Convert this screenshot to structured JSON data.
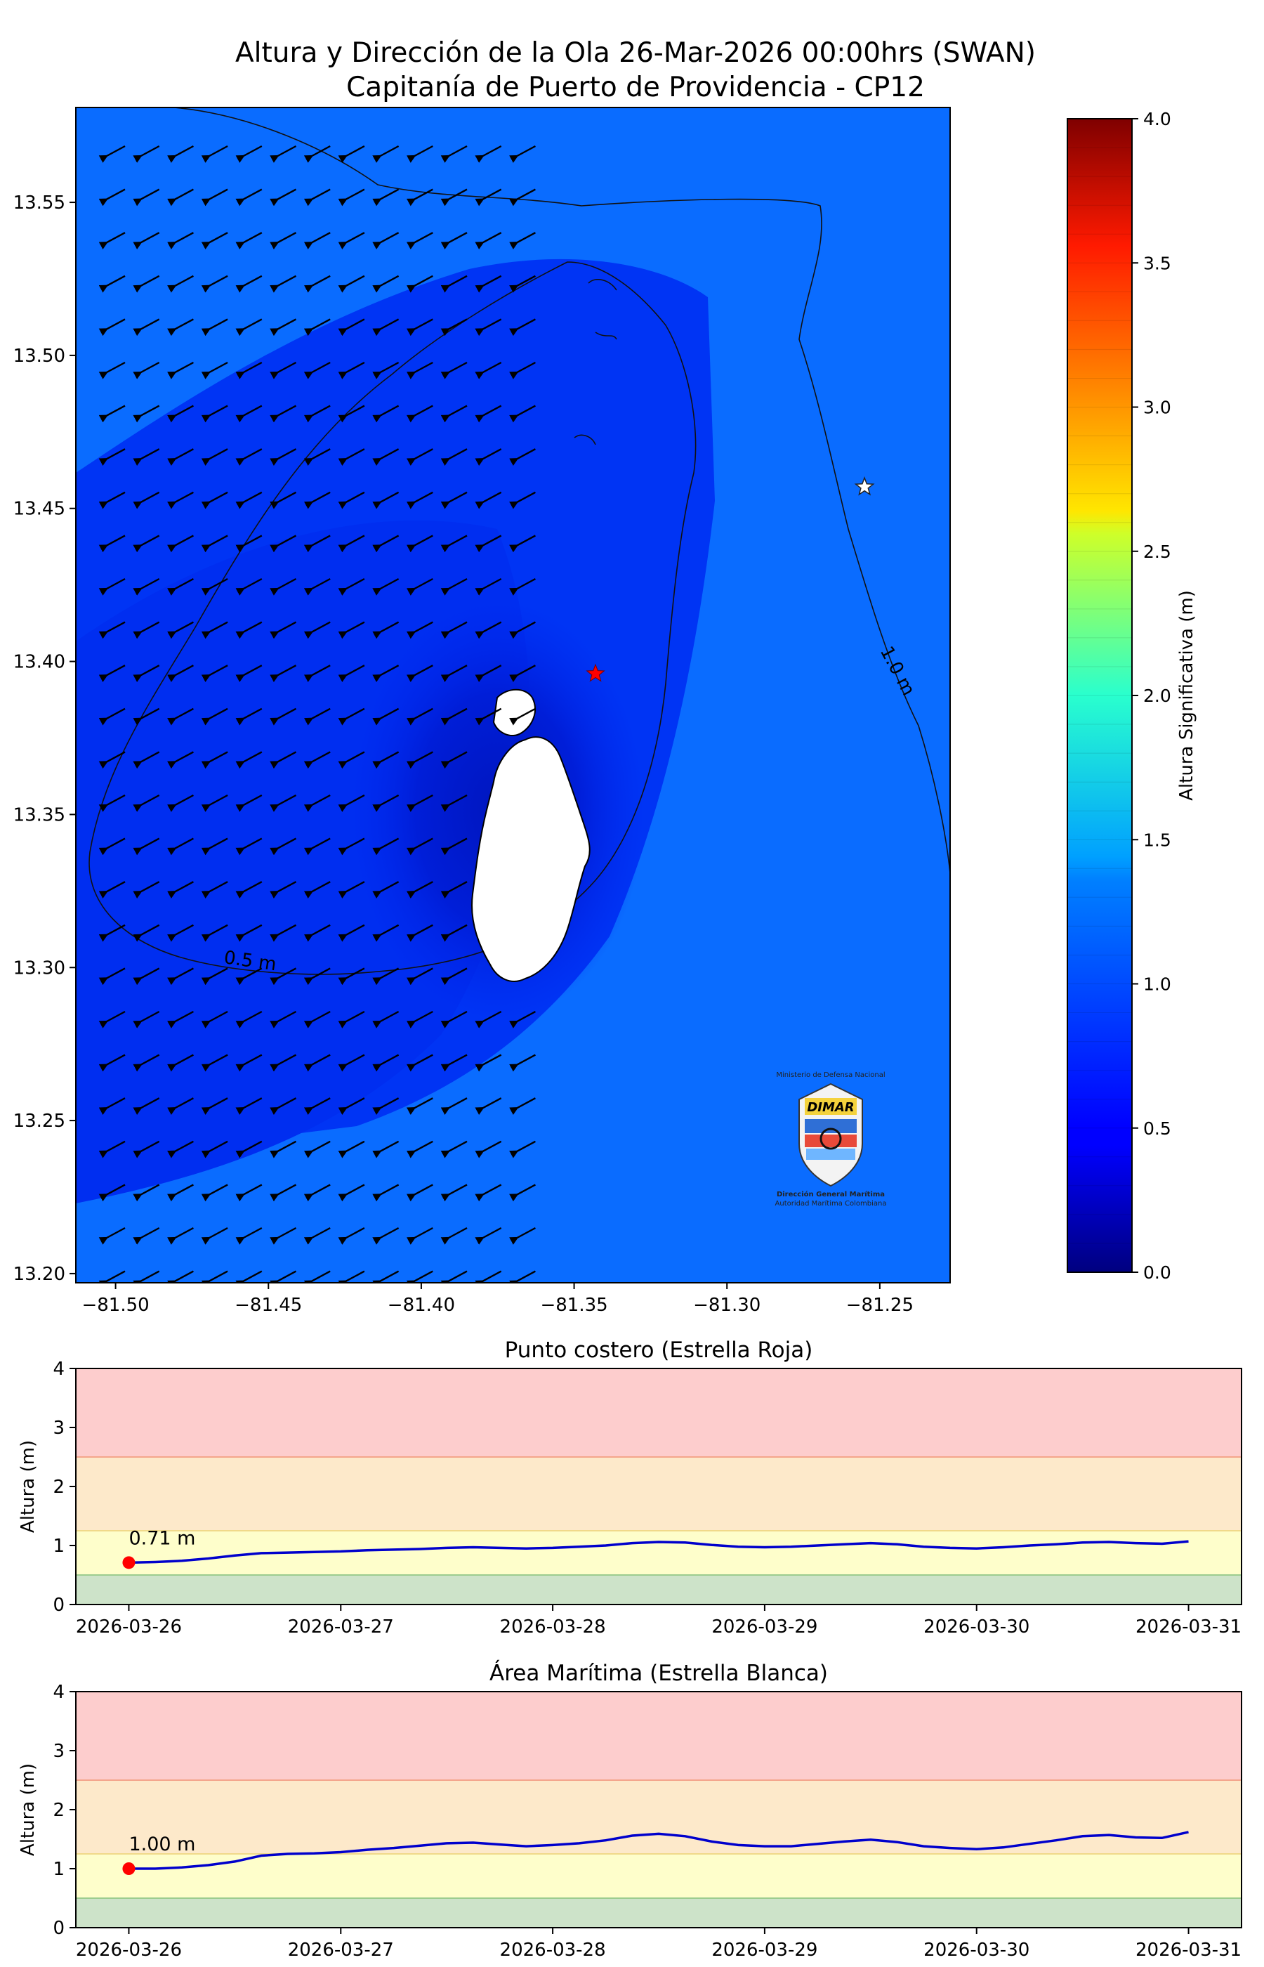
{
  "page": {
    "title_line1": "Altura y Dirección de la Ola 26-Mar-2026 00:00hrs (SWAN)",
    "title_line2": "Capitanía de Puerto de Providencia - CP12"
  },
  "map": {
    "x_ticks": [
      "−81.50",
      "−81.45",
      "−81.40",
      "−81.35",
      "−81.30",
      "−81.25"
    ],
    "x_tick_values": [
      -81.5,
      -81.45,
      -81.4,
      -81.35,
      -81.3,
      -81.25
    ],
    "y_ticks": [
      "13.55",
      "13.50",
      "13.45",
      "13.40",
      "13.35",
      "13.30",
      "13.25",
      "13.20"
    ],
    "y_tick_values": [
      13.55,
      13.5,
      13.45,
      13.4,
      13.35,
      13.3,
      13.25,
      13.2
    ],
    "xlim": [
      -81.513,
      -81.227
    ],
    "ylim": [
      13.197,
      13.581
    ],
    "contour_labels": [
      "0.5 m",
      "1.0 m"
    ],
    "red_star": [
      -81.343,
      13.396
    ],
    "white_star": [
      -81.255,
      13.457
    ],
    "arrow_direction": "southwest",
    "colors": {
      "open_sea": "#0a6cff",
      "sheltered": "#0026ee",
      "lee": "#0018c8",
      "land": "#ffffff"
    }
  },
  "colorbar": {
    "label": "Altura Significativa (m)",
    "ticks": [
      "0.0",
      "0.5",
      "1.0",
      "1.5",
      "2.0",
      "2.5",
      "3.0",
      "3.5",
      "4.0"
    ],
    "range": [
      0,
      4
    ],
    "colormap": "jet"
  },
  "logo": {
    "top_text": "Ministerio de Defensa Nacional",
    "brand": "DIMAR",
    "line1": "Dirección General Marítima",
    "line2": "Autoridad Marítima Colombiana"
  },
  "chart_data": [
    {
      "type": "line",
      "title": "Punto costero (Estrella Roja)",
      "ylabel": "Altura (m)",
      "ylim": [
        0,
        4
      ],
      "y_ticks": [
        "0",
        "1",
        "2",
        "3",
        "4"
      ],
      "x_tick_labels": [
        "2026-03-26",
        "2026-03-27",
        "2026-03-28",
        "2026-03-29",
        "2026-03-30",
        "2026-03-31"
      ],
      "x": [
        0,
        0.125,
        0.25,
        0.375,
        0.5,
        0.625,
        0.75,
        0.875,
        1.0,
        1.125,
        1.25,
        1.375,
        1.5,
        1.625,
        1.75,
        1.875,
        2.0,
        2.125,
        2.25,
        2.375,
        2.5,
        2.625,
        2.75,
        2.875,
        3.0,
        3.125,
        3.25,
        3.375,
        3.5,
        3.625,
        3.75,
        3.875,
        4.0,
        4.125,
        4.25,
        4.375,
        4.5,
        4.625,
        4.75,
        4.875,
        5.0
      ],
      "values": [
        0.71,
        0.72,
        0.74,
        0.78,
        0.83,
        0.87,
        0.88,
        0.89,
        0.9,
        0.92,
        0.93,
        0.94,
        0.96,
        0.97,
        0.96,
        0.95,
        0.96,
        0.98,
        1.0,
        1.04,
        1.06,
        1.05,
        1.01,
        0.98,
        0.97,
        0.98,
        1.0,
        1.02,
        1.04,
        1.02,
        0.98,
        0.96,
        0.95,
        0.97,
        1.0,
        1.02,
        1.05,
        1.06,
        1.04,
        1.03,
        1.07
      ],
      "current_value": 0.71,
      "current_label": "0.71 m",
      "bands": [
        {
          "from": 0,
          "to": 0.5,
          "color": "#cde3c9"
        },
        {
          "from": 0.5,
          "to": 1.25,
          "color": "#fefecb"
        },
        {
          "from": 1.25,
          "to": 2.5,
          "color": "#fde9ca"
        },
        {
          "from": 2.5,
          "to": 4,
          "color": "#fdcdcd"
        }
      ],
      "line_color": "#0000cc",
      "marker_color": "#ff0000"
    },
    {
      "type": "line",
      "title": "Área Marítima (Estrella Blanca)",
      "ylabel": "Altura (m)",
      "ylim": [
        0,
        4
      ],
      "y_ticks": [
        "0",
        "1",
        "2",
        "3",
        "4"
      ],
      "x_tick_labels": [
        "2026-03-26",
        "2026-03-27",
        "2026-03-28",
        "2026-03-29",
        "2026-03-30",
        "2026-03-31"
      ],
      "x": [
        0,
        0.125,
        0.25,
        0.375,
        0.5,
        0.625,
        0.75,
        0.875,
        1.0,
        1.125,
        1.25,
        1.375,
        1.5,
        1.625,
        1.75,
        1.875,
        2.0,
        2.125,
        2.25,
        2.375,
        2.5,
        2.625,
        2.75,
        2.875,
        3.0,
        3.125,
        3.25,
        3.375,
        3.5,
        3.625,
        3.75,
        3.875,
        4.0,
        4.125,
        4.25,
        4.375,
        4.5,
        4.625,
        4.75,
        4.875,
        5.0
      ],
      "values": [
        1.0,
        1.0,
        1.02,
        1.06,
        1.12,
        1.22,
        1.25,
        1.26,
        1.28,
        1.32,
        1.35,
        1.39,
        1.43,
        1.44,
        1.41,
        1.38,
        1.4,
        1.43,
        1.48,
        1.56,
        1.59,
        1.55,
        1.46,
        1.4,
        1.38,
        1.38,
        1.42,
        1.46,
        1.49,
        1.45,
        1.38,
        1.35,
        1.33,
        1.36,
        1.42,
        1.48,
        1.55,
        1.57,
        1.53,
        1.52,
        1.62
      ],
      "current_value": 1.0,
      "current_label": "1.00 m",
      "bands": [
        {
          "from": 0,
          "to": 0.5,
          "color": "#cde3c9"
        },
        {
          "from": 0.5,
          "to": 1.25,
          "color": "#fefecb"
        },
        {
          "from": 1.25,
          "to": 2.5,
          "color": "#fde9ca"
        },
        {
          "from": 2.5,
          "to": 4,
          "color": "#fdcdcd"
        }
      ],
      "line_color": "#0000cc",
      "marker_color": "#ff0000"
    }
  ]
}
